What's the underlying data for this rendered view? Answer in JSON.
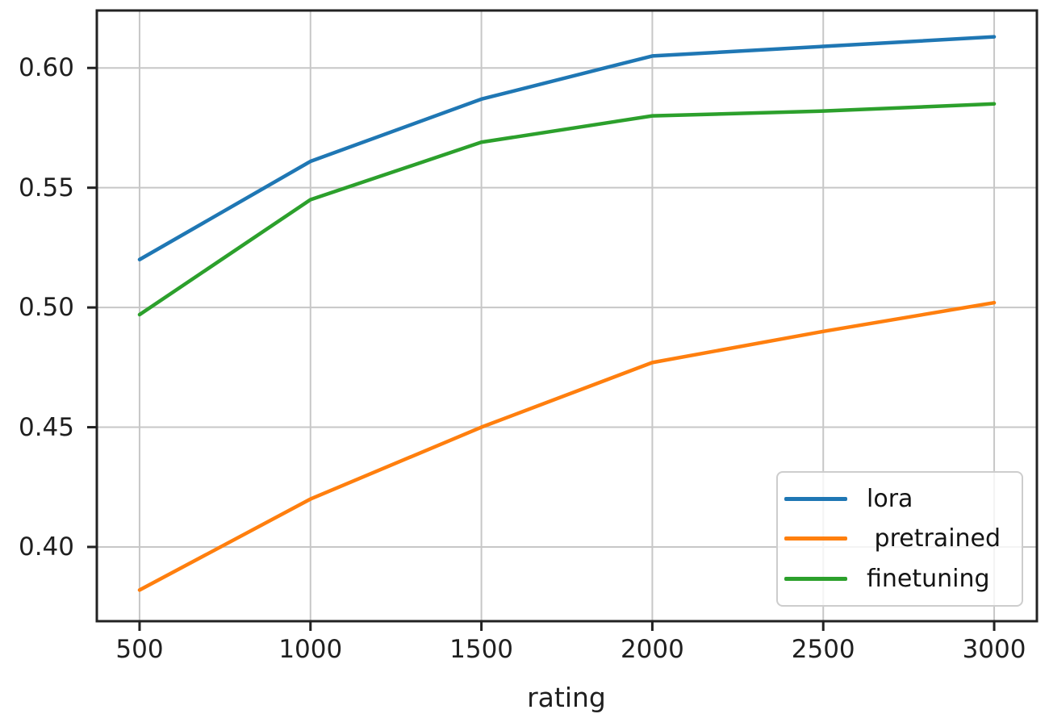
{
  "chart_data": {
    "type": "line",
    "title": "",
    "xlabel": "rating",
    "ylabel": "",
    "x": [
      500,
      1000,
      1500,
      2000,
      2500,
      3000
    ],
    "xtick_labels": [
      "500",
      "1000",
      "1500",
      "2000",
      "2500",
      "3000"
    ],
    "ytick_values": [
      0.4,
      0.45,
      0.5,
      0.55,
      0.6
    ],
    "ytick_labels": [
      "0.40",
      "0.45",
      "0.50",
      "0.55",
      "0.60"
    ],
    "xlim": [
      375,
      3125
    ],
    "ylim": [
      0.369,
      0.624
    ],
    "grid": true,
    "legend": {
      "position": "lower right",
      "entries": [
        "lora",
        " pretrained",
        "finetuning"
      ]
    },
    "series": [
      {
        "name": "lora",
        "color": "#1f77b4",
        "values": [
          0.52,
          0.561,
          0.587,
          0.605,
          0.609,
          0.613
        ]
      },
      {
        "name": " pretrained",
        "color": "#ff7f0e",
        "values": [
          0.382,
          0.42,
          0.45,
          0.477,
          0.49,
          0.502
        ]
      },
      {
        "name": "finetuning",
        "color": "#2ca02c",
        "values": [
          0.497,
          0.545,
          0.569,
          0.58,
          0.582,
          0.585
        ]
      }
    ],
    "colors": {
      "grid": "#c7c7c7",
      "spine": "#222222",
      "text": "#1f1f1f"
    }
  }
}
